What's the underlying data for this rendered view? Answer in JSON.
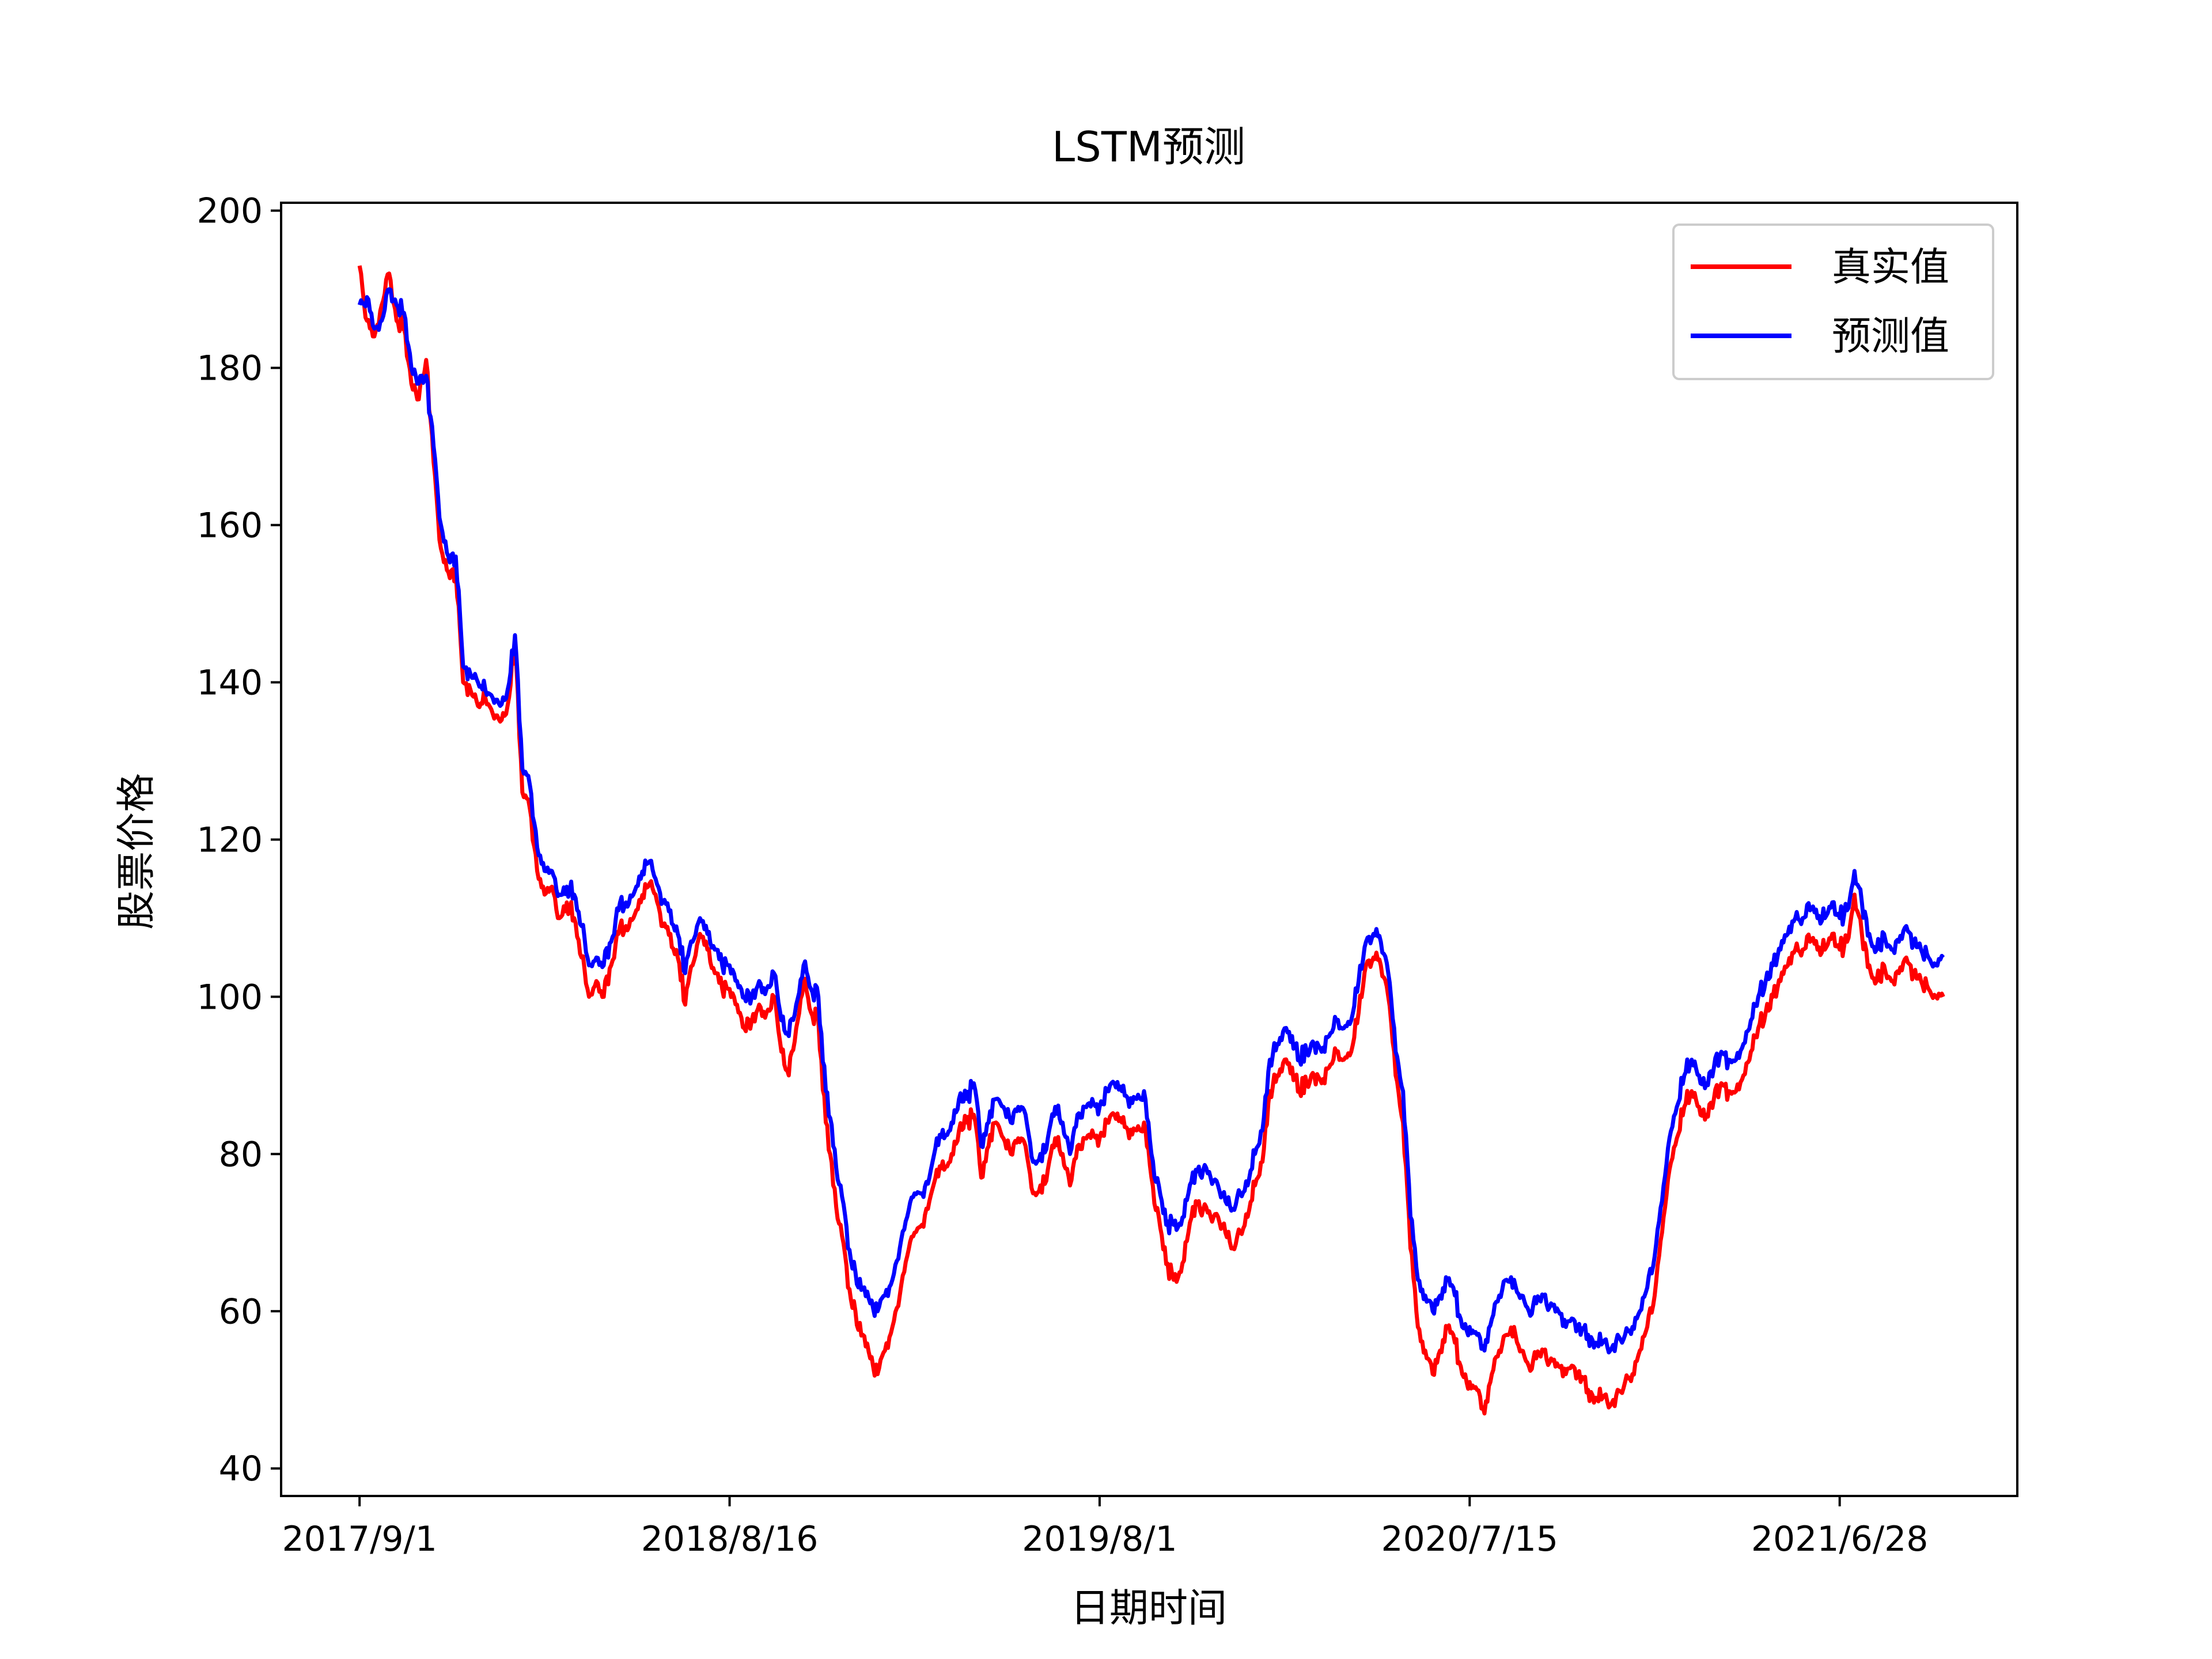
{
  "chart_data": {
    "type": "line",
    "title": "LSTM预测",
    "xlabel": "日期时间",
    "ylabel": "股票价格",
    "x_ticks": [
      "2017/9/1",
      "2018/8/16",
      "2019/8/1",
      "2020/7/15",
      "2021/6/28"
    ],
    "x_tick_index": [
      0,
      250,
      500,
      750,
      1000
    ],
    "x_range": [
      -53,
      1120
    ],
    "ylim": [
      36.5,
      201
    ],
    "y_ticks": [
      40,
      60,
      80,
      100,
      120,
      140,
      160,
      180,
      200
    ],
    "grid": false,
    "legend_position": "upper right",
    "anchor_index": [
      0,
      5,
      10,
      15,
      20,
      25,
      30,
      35,
      40,
      45,
      50,
      55,
      60,
      65,
      70,
      75,
      80,
      85,
      90,
      95,
      100,
      105,
      110,
      115,
      120,
      125,
      130,
      135,
      140,
      145,
      150,
      155,
      160,
      165,
      170,
      175,
      180,
      185,
      190,
      195,
      200,
      205,
      210,
      215,
      220,
      225,
      230,
      235,
      240,
      245,
      250,
      255,
      260,
      265,
      270,
      275,
      280,
      285,
      290,
      295,
      300,
      305,
      310,
      315,
      320,
      325,
      330,
      335,
      340,
      345,
      350,
      355,
      360,
      365,
      370,
      375,
      380,
      385,
      390,
      395,
      400,
      405,
      410,
      415,
      420,
      425,
      430,
      435,
      440,
      445,
      450,
      455,
      460,
      465,
      470,
      475,
      480,
      485,
      490,
      495,
      500,
      505,
      510,
      515,
      520,
      525,
      530,
      535,
      540,
      545,
      550,
      555,
      560,
      565,
      570,
      575,
      580,
      585,
      590,
      595,
      600,
      605,
      610,
      615,
      620,
      625,
      630,
      635,
      640,
      645,
      650,
      655,
      660,
      665,
      670,
      675,
      680,
      685,
      690,
      695,
      700,
      705,
      710,
      715,
      720,
      725,
      730,
      735,
      740,
      745,
      750,
      755,
      760,
      765,
      770,
      775,
      780,
      785,
      790,
      795,
      800,
      805,
      810,
      815,
      820,
      825,
      830,
      835,
      840,
      845,
      850,
      855,
      860,
      865,
      870,
      875,
      880,
      885,
      890,
      895,
      900,
      905,
      910,
      915,
      920,
      925,
      930,
      935,
      940,
      945,
      950,
      955,
      960,
      965,
      970,
      975,
      980,
      985,
      990,
      995,
      1000,
      1005,
      1010,
      1015,
      1020,
      1025,
      1030,
      1035,
      1040,
      1045,
      1050,
      1055,
      1060,
      1065,
      1070
    ],
    "series": [
      {
        "name": "真实值",
        "color": "#ff0000",
        "values": [
          193,
          186,
          184,
          188,
          192,
          186,
          185,
          178,
          176,
          181,
          168,
          157,
          154,
          154,
          140,
          139,
          137,
          138,
          136,
          135,
          137,
          145,
          126,
          124,
          116,
          113,
          114,
          110,
          112,
          110,
          105,
          100,
          102,
          100,
          104,
          108,
          109,
          110,
          112,
          114,
          113,
          109,
          108,
          105,
          99,
          104,
          108,
          106,
          103,
          101,
          101,
          99,
          96,
          97,
          99,
          98,
          100,
          93,
          90,
          96,
          102,
          98,
          97,
          84,
          76,
          71,
          63,
          60,
          57,
          54,
          52,
          55,
          58,
          62,
          67,
          70,
          71,
          74,
          78,
          78,
          80,
          83,
          84,
          85,
          77,
          81,
          84,
          82,
          80,
          82,
          81,
          75,
          76,
          78,
          82,
          80,
          76,
          81,
          82,
          83,
          82,
          84,
          85,
          84,
          82,
          83,
          84,
          77,
          72,
          66,
          64,
          65,
          70,
          74,
          73,
          72,
          72,
          70,
          68,
          70,
          72,
          76,
          79,
          88,
          90,
          92,
          91,
          88,
          89,
          90,
          89,
          91,
          93,
          92,
          93,
          98,
          104,
          105,
          104,
          100,
          90,
          84,
          68,
          58,
          55,
          52,
          55,
          58,
          56,
          52,
          51,
          50,
          47,
          52,
          55,
          57,
          58,
          55,
          53,
          54,
          55,
          54,
          53,
          52,
          53,
          51,
          50,
          49,
          49,
          48,
          50,
          51,
          52,
          55,
          58,
          62,
          70,
          78,
          82,
          86,
          88,
          86,
          85,
          87,
          89,
          88,
          88,
          90,
          93,
          96,
          98,
          100,
          102,
          104,
          106,
          106,
          107,
          106,
          106,
          108,
          106,
          107,
          113,
          108,
          104,
          102,
          104,
          102,
          103,
          105,
          103,
          102,
          101,
          100,
          100
        ]
      },
      {
        "name": "预测值",
        "color": "#0000ff",
        "values": [
          188,
          189,
          185,
          186,
          190,
          188,
          187,
          180,
          178,
          179,
          170,
          160,
          156,
          156,
          142,
          141,
          140,
          139,
          138,
          137,
          139,
          146,
          129,
          127,
          119,
          116,
          116,
          113,
          114,
          113,
          109,
          104,
          105,
          104,
          107,
          111,
          112,
          113,
          115,
          117,
          115,
          112,
          111,
          108,
          103,
          107,
          110,
          108,
          106,
          104,
          104,
          102,
          100,
          100,
          102,
          101,
          103,
          97,
          95,
          99,
          104,
          101,
          100,
          88,
          81,
          76,
          68,
          65,
          63,
          61,
          60,
          62,
          64,
          68,
          72,
          75,
          75,
          77,
          82,
          82,
          84,
          87,
          87,
          89,
          81,
          84,
          87,
          86,
          84,
          86,
          85,
          79,
          80,
          82,
          86,
          84,
          80,
          85,
          86,
          87,
          86,
          88,
          89,
          88,
          86,
          87,
          88,
          80,
          76,
          71,
          71,
          71,
          75,
          78,
          78,
          77,
          76,
          74,
          73,
          75,
          76,
          80,
          83,
          92,
          94,
          96,
          95,
          92,
          93,
          94,
          93,
          95,
          97,
          96,
          97,
          102,
          107,
          108,
          107,
          103,
          93,
          88,
          72,
          64,
          62,
          60,
          62,
          64,
          62,
          58,
          58,
          57,
          55,
          59,
          62,
          64,
          64,
          62,
          60,
          61,
          62,
          61,
          60,
          58,
          59,
          57,
          57,
          56,
          56,
          55,
          57,
          57,
          58,
          60,
          63,
          67,
          74,
          82,
          86,
          90,
          92,
          90,
          89,
          91,
          93,
          92,
          92,
          94,
          97,
          100,
          102,
          104,
          106,
          108,
          110,
          110,
          111,
          110,
          110,
          112,
          110,
          111,
          116,
          112,
          108,
          106,
          108,
          106,
          107,
          109,
          107,
          106,
          105,
          104,
          105
        ]
      }
    ]
  }
}
